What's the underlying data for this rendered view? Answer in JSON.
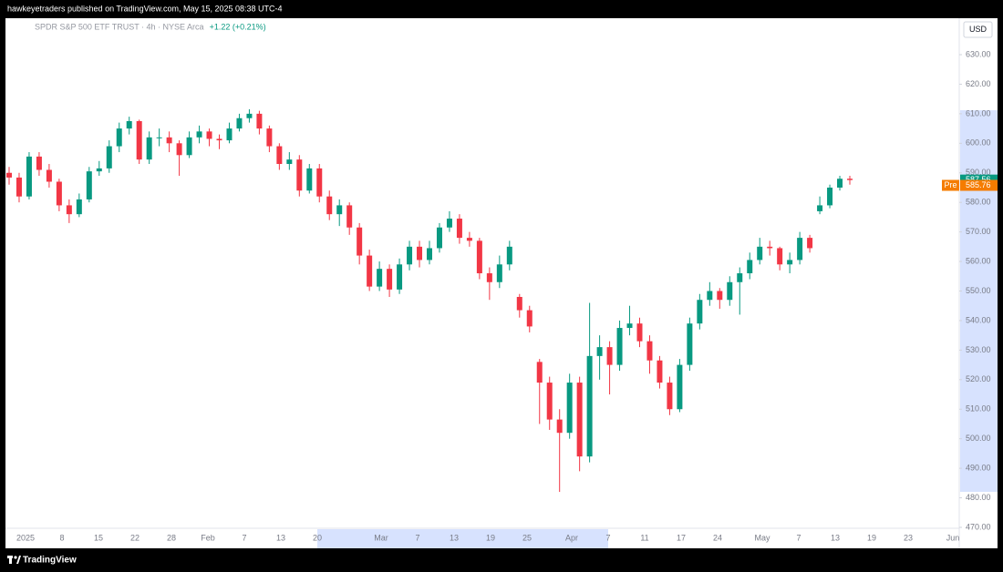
{
  "header": {
    "text": "hawkeyetraders published on TradingView.com, May 15, 2025 08:38 UTC-4"
  },
  "footer": {
    "text": "TradingView"
  },
  "chart_data": {
    "type": "candlestick",
    "title": "SPDR S&P 500 ETF TRUST · 4h · NYSE Arca",
    "change": "+1.22 (+0.21%)",
    "currency": "USD",
    "up_color": "#089981",
    "down_color": "#f23645",
    "open": [
      590,
      588.4,
      582,
      595.5,
      591,
      587,
      579,
      576,
      581,
      590.5,
      591.5,
      599,
      605,
      607.5,
      594.5,
      602,
      602,
      600,
      596,
      602,
      604,
      601.5,
      601,
      605,
      608.5,
      610,
      605,
      599,
      593,
      594.5,
      584,
      591.5,
      582,
      576,
      579,
      571.5,
      562,
      551.5,
      557.5,
      550.5,
      559,
      565,
      560.5,
      564.5,
      571.5,
      574.5,
      568,
      567,
      556,
      553,
      559,
      548,
      543.5,
      526,
      519,
      506.5,
      502,
      519,
      494,
      528,
      531,
      525,
      537.5,
      539,
      533,
      526.5,
      519,
      510,
      525,
      539,
      547,
      550,
      547,
      553,
      556,
      560.5,
      565,
      564.5,
      559,
      560.5,
      568,
      577,
      579,
      585,
      588
    ],
    "high": [
      592,
      590,
      597,
      597,
      593,
      588,
      581,
      583,
      592,
      594,
      601,
      607,
      609,
      608,
      604,
      605,
      604,
      601,
      604,
      606,
      605,
      603,
      607,
      610,
      611.5,
      611,
      606,
      600,
      597,
      596,
      593,
      593,
      584,
      581,
      580,
      573,
      564,
      560,
      559,
      561,
      567,
      567,
      567,
      573,
      577,
      576,
      570,
      568,
      558,
      562,
      567,
      549,
      545,
      527,
      521,
      510,
      522,
      521,
      546,
      535,
      533,
      540,
      545,
      541,
      535,
      528,
      521,
      527,
      541,
      549,
      553,
      551,
      555,
      558,
      563,
      568,
      567,
      565,
      563,
      570,
      569,
      582,
      586,
      589,
      589
    ],
    "low": [
      586,
      580,
      581,
      589,
      585,
      577,
      573,
      575,
      580,
      589,
      590,
      597,
      603,
      593,
      593,
      599,
      597,
      589,
      595,
      600,
      599,
      598,
      600,
      604,
      607,
      603,
      597,
      591,
      591,
      582,
      583,
      580,
      574,
      572,
      569,
      559,
      550,
      550,
      548,
      549,
      557,
      558,
      559,
      563,
      570,
      566,
      565,
      554,
      547,
      551,
      557,
      541,
      536,
      505,
      503,
      482,
      500,
      489,
      492,
      520,
      515,
      523,
      535,
      531,
      522,
      517,
      508,
      509,
      523,
      537,
      545,
      544,
      545,
      542,
      554,
      559,
      562,
      557,
      556,
      559,
      563,
      576,
      578,
      584,
      586
    ],
    "close": [
      588.4,
      582,
      595.5,
      591,
      587,
      579,
      576,
      581,
      590.5,
      591.5,
      599,
      605,
      607.5,
      594.5,
      602,
      602,
      600,
      596,
      602,
      604,
      601.5,
      601,
      605,
      608.5,
      610,
      605,
      599,
      593,
      594.5,
      584,
      591.5,
      582,
      576,
      579,
      571.5,
      562,
      551.5,
      557.5,
      550.5,
      559,
      565,
      560.5,
      564.5,
      571.5,
      574.5,
      568,
      567,
      556,
      553,
      559,
      565,
      543.5,
      538,
      519,
      506.5,
      502,
      519,
      494,
      528,
      531,
      525,
      537.5,
      539,
      533,
      526.5,
      519,
      510,
      525,
      539,
      547,
      550,
      547,
      553,
      556,
      560.5,
      565,
      564.5,
      559,
      560.5,
      568,
      564.5,
      579,
      585,
      588,
      587.56
    ],
    "last_price": 587.56,
    "pre_market": {
      "name": "Pre",
      "value": 585.76
    },
    "pre_color": "#f57c00",
    "ylim": [
      470,
      630
    ],
    "yticks": [
      {
        "value": 470,
        "label": "470.00"
      },
      {
        "value": 480,
        "label": "480.00"
      },
      {
        "value": 490,
        "label": "490.00"
      },
      {
        "value": 500,
        "label": "500.00"
      },
      {
        "value": 510,
        "label": "510.00"
      },
      {
        "value": 520,
        "label": "520.00"
      },
      {
        "value": 530,
        "label": "530.00"
      },
      {
        "value": 540,
        "label": "540.00"
      },
      {
        "value": 550,
        "label": "550.00"
      },
      {
        "value": 560,
        "label": "560.00"
      },
      {
        "value": 570,
        "label": "570.00"
      },
      {
        "value": 580,
        "label": "580.00"
      },
      {
        "value": 590,
        "label": "590.00"
      },
      {
        "value": 600,
        "label": "600.00"
      },
      {
        "value": 610,
        "label": "610.00"
      },
      {
        "value": 620,
        "label": "620.00"
      },
      {
        "value": 630,
        "label": "630.00"
      }
    ],
    "x_labels": [
      "2025",
      "8",
      "15",
      "22",
      "28",
      "Feb",
      "7",
      "13",
      "20",
      "Mar",
      "7",
      "13",
      "19",
      "25",
      "Apr",
      "7",
      "11",
      "17",
      "24",
      "May",
      "7",
      "13",
      "19",
      "23",
      "Jun"
    ]
  }
}
